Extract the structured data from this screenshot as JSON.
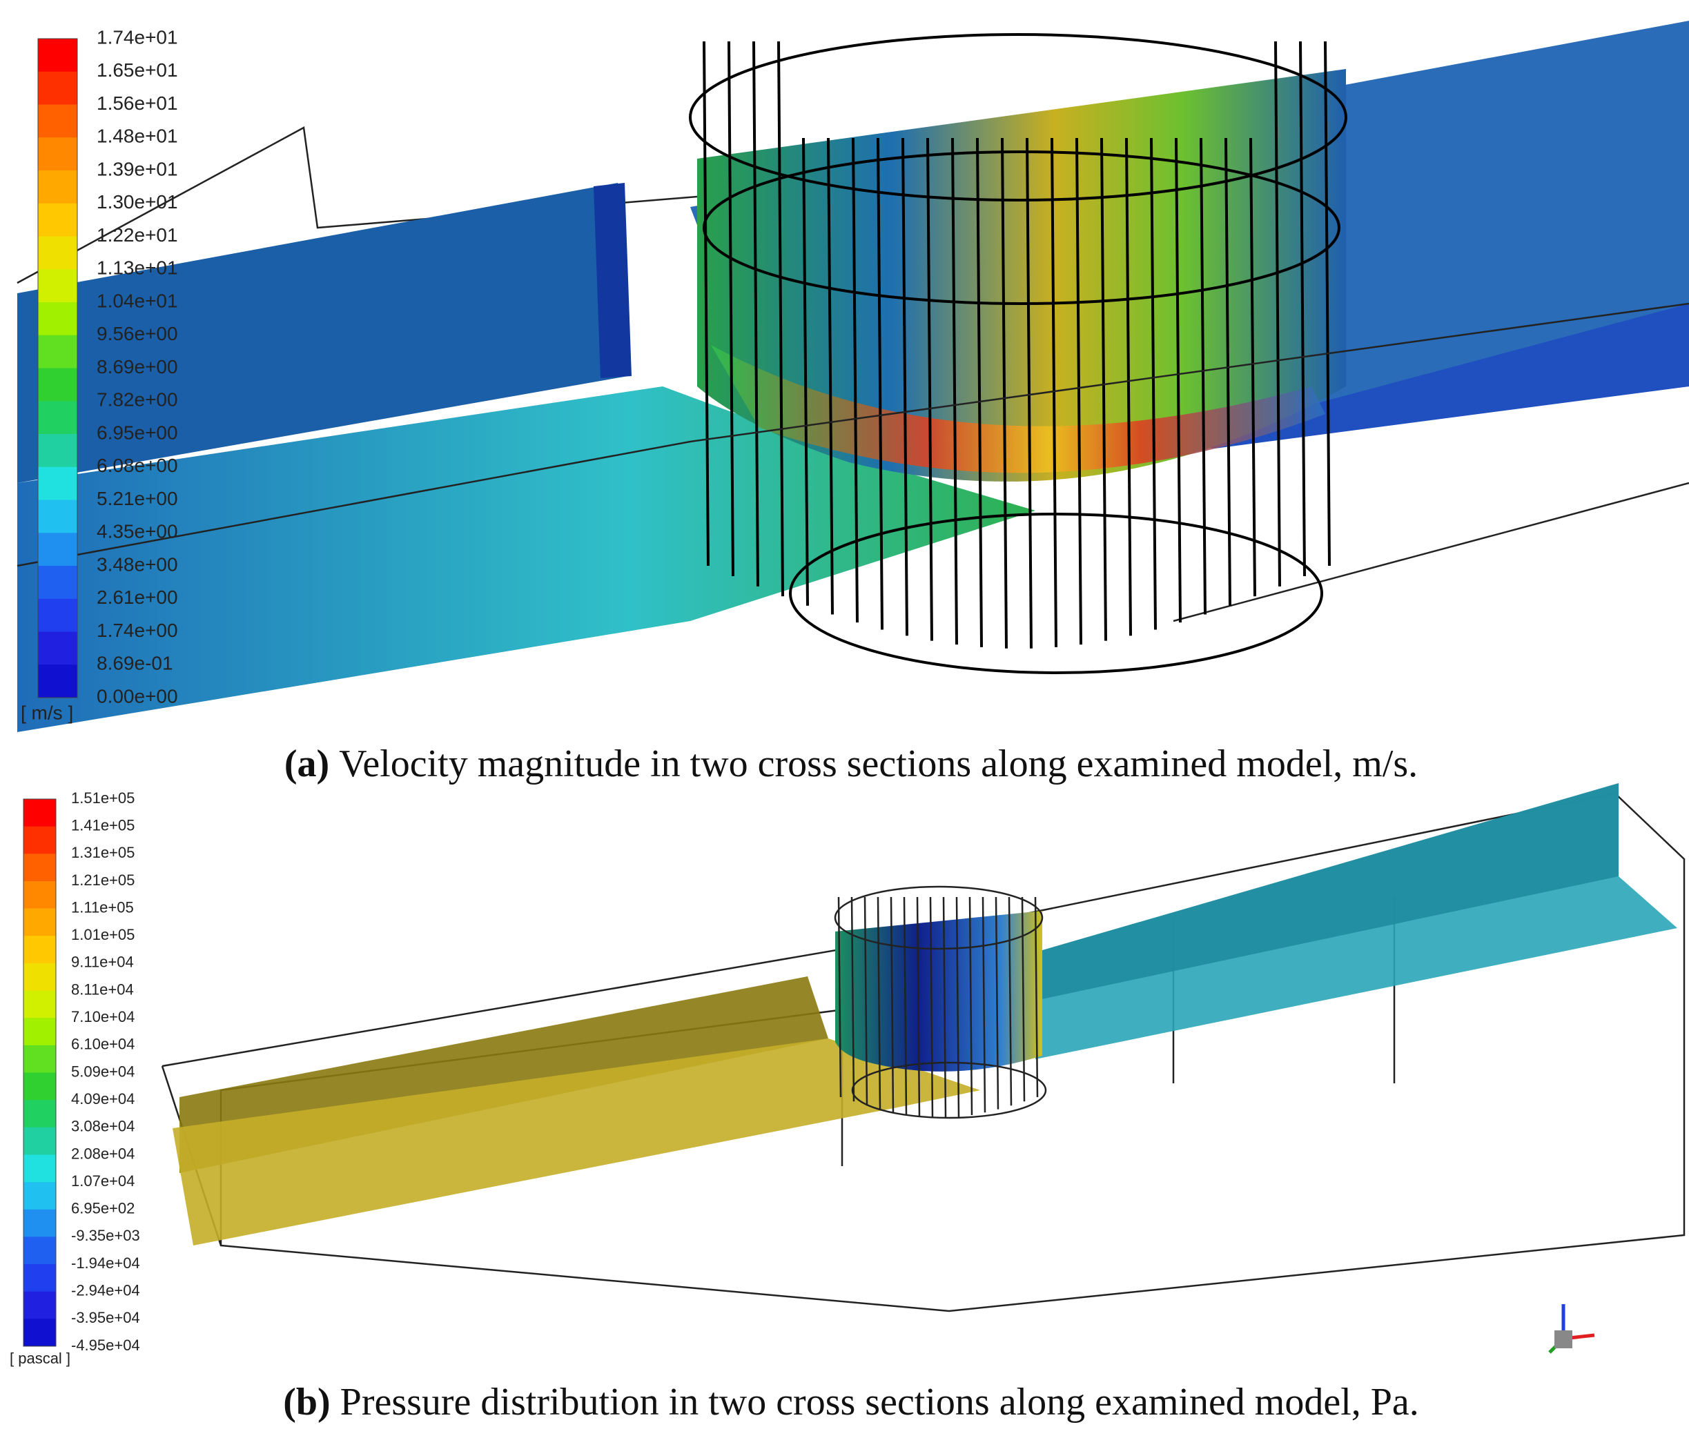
{
  "panels": [
    {
      "colorbar_labels": [
        "1.74e+01",
        "1.65e+01",
        "1.56e+01",
        "1.48e+01",
        "1.39e+01",
        "1.30e+01",
        "1.22e+01",
        "1.13e+01",
        "1.04e+01",
        "9.56e+00",
        "8.69e+00",
        "7.82e+00",
        "6.95e+00",
        "6.08e+00",
        "5.21e+00",
        "4.35e+00",
        "3.48e+00",
        "2.61e+00",
        "1.74e+00",
        "8.69e-01",
        "0.00e+00"
      ],
      "unit": "[ m/s ]",
      "caption_label": "(a)",
      "caption": "Velocity magnitude in two cross sections along examined model, m/s."
    },
    {
      "colorbar_labels": [
        "1.51e+05",
        "1.41e+05",
        "1.31e+05",
        "1.21e+05",
        "1.11e+05",
        "1.01e+05",
        "9.11e+04",
        "8.11e+04",
        "7.10e+04",
        "6.10e+04",
        "5.09e+04",
        "4.09e+04",
        "3.08e+04",
        "2.08e+04",
        "1.07e+04",
        "6.95e+02",
        "-9.35e+03",
        "-1.94e+04",
        "-2.94e+04",
        "-3.95e+04",
        "-4.95e+04"
      ],
      "unit": "[ pascal ]",
      "caption_label": "(b)",
      "caption": "Pressure distribution in two cross sections along examined model, Pa."
    }
  ]
}
